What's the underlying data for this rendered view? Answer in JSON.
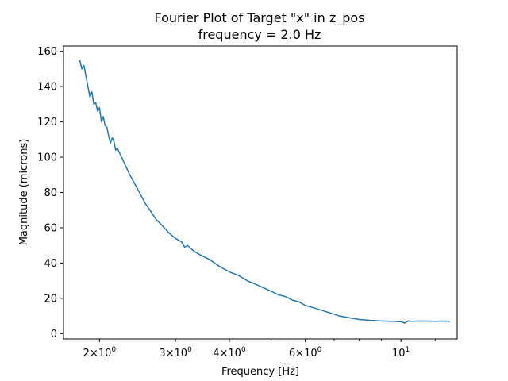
{
  "chart_data": {
    "type": "line",
    "title": "Fourier Plot of Target \"x\" in z_pos",
    "subtitle": "frequency = 2.0 Hz",
    "xlabel": "Frequency [Hz]",
    "ylabel": "Magnitude (microns)",
    "x_scale": "log",
    "xlim": [
      1.65,
      13.5
    ],
    "ylim": [
      -3,
      163
    ],
    "grid": false,
    "line_color": "#1f77b4",
    "x_major_ticks": [
      {
        "value": 2,
        "base": "2×10",
        "exp": "0"
      },
      {
        "value": 3,
        "base": "3×10",
        "exp": "0"
      },
      {
        "value": 4,
        "base": "4×10",
        "exp": "0"
      },
      {
        "value": 6,
        "base": "6×10",
        "exp": "0"
      },
      {
        "value": 10,
        "base": "10",
        "exp": "1"
      }
    ],
    "x_minor_ticks": [
      5,
      7,
      8,
      9,
      12
    ],
    "y_ticks": [
      0,
      20,
      40,
      60,
      80,
      100,
      120,
      140,
      160
    ],
    "series": [
      {
        "x": [
          1.8,
          1.82,
          1.84,
          1.86,
          1.88,
          1.9,
          1.92,
          1.94,
          1.96,
          1.98,
          2.0,
          2.02,
          2.04,
          2.06,
          2.08,
          2.1,
          2.12,
          2.14,
          2.16,
          2.18,
          2.2,
          2.25,
          2.3,
          2.35,
          2.4,
          2.45,
          2.5,
          2.55,
          2.6,
          2.65,
          2.7,
          2.75,
          2.8,
          2.85,
          2.9,
          3.0,
          3.1,
          3.15,
          3.2,
          3.3,
          3.4,
          3.6,
          3.8,
          4.0,
          4.2,
          4.4,
          4.6,
          4.8,
          5.0,
          5.2,
          5.4,
          5.6,
          5.8,
          6.0,
          6.4,
          6.8,
          7.2,
          7.6,
          8.0,
          8.5,
          9.0,
          9.5,
          10.0,
          10.2,
          10.4,
          10.6,
          11.0,
          11.5,
          12.0,
          12.5,
          13.0
        ],
        "y": [
          155,
          150,
          152,
          146,
          140,
          134,
          137,
          130,
          131,
          126,
          128,
          120,
          123,
          118,
          117,
          112,
          108,
          111,
          109,
          104,
          105,
          100,
          95,
          90,
          86,
          82,
          78,
          74,
          71,
          68,
          65,
          63,
          61,
          59,
          57,
          54,
          52,
          49,
          50,
          47,
          45,
          42,
          38,
          35,
          33,
          30,
          28,
          26,
          24,
          22,
          21,
          19,
          18,
          16,
          14,
          12,
          10,
          9,
          8,
          7.5,
          7.2,
          7.0,
          6.8,
          6.0,
          7.2,
          7.0,
          7.1,
          7.1,
          7.0,
          7.1,
          7.0
        ]
      }
    ]
  }
}
